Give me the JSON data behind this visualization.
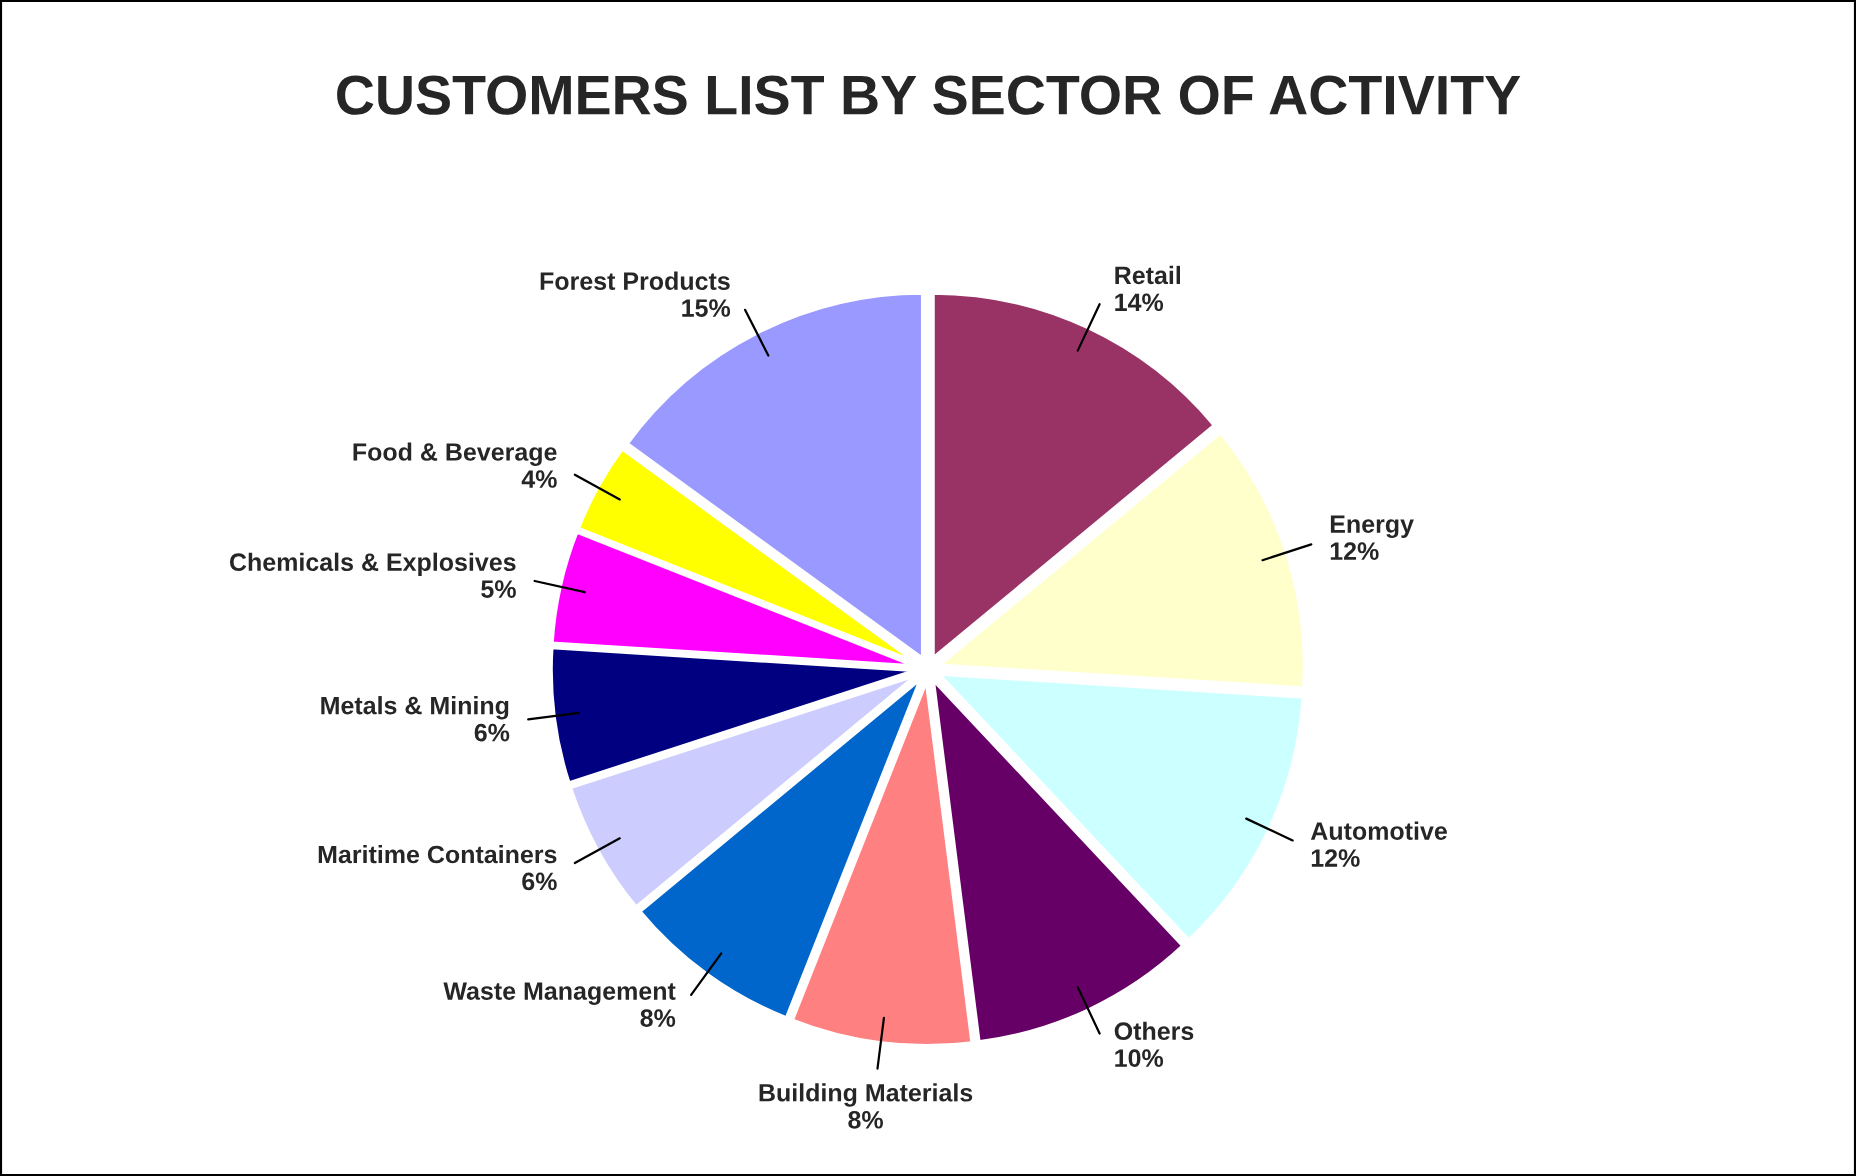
{
  "chart_data": {
    "type": "pie",
    "title": "CUSTOMERS LIST BY SECTOR OF ACTIVITY",
    "categories": [
      "Retail",
      "Energy",
      "Automotive",
      "Others",
      "Building Materials",
      "Waste Management",
      "Maritime Containers",
      "Metals & Mining",
      "Chemicals & Explosives",
      "Food & Beverage",
      "Forest Products"
    ],
    "values": [
      14,
      12,
      12,
      10,
      8,
      8,
      6,
      6,
      5,
      4,
      15
    ],
    "value_labels": [
      "14%",
      "12%",
      "12%",
      "10%",
      "8%",
      "8%",
      "6%",
      "6%",
      "5%",
      "4%",
      "15%"
    ],
    "colors": [
      "#993366",
      "#ffffcc",
      "#ccffff",
      "#660066",
      "#ff8080",
      "#0066cc",
      "#ccccff",
      "#000080",
      "#ff00ff",
      "#ffff00",
      "#9999ff"
    ],
    "legend": false
  }
}
